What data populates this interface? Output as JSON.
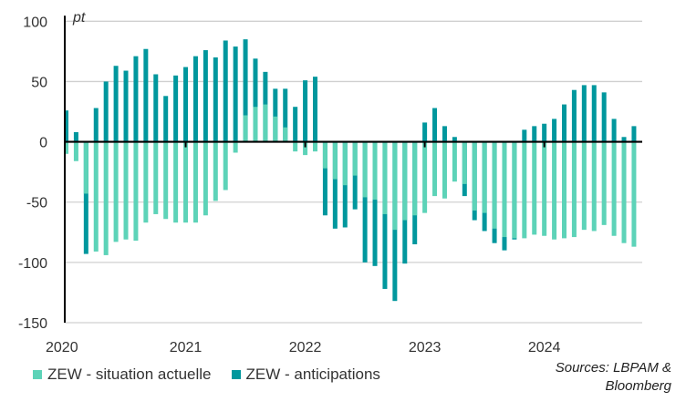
{
  "chart_data": {
    "type": "bar",
    "overlay": true,
    "unit_label": "pt",
    "ylim": [
      -150,
      100
    ],
    "yticks": [
      -150,
      -100,
      -50,
      0,
      50,
      100
    ],
    "grid": true,
    "legend_placement": "bottom-left",
    "x_start": "2020-01",
    "year_labels": [
      "2020",
      "2021",
      "2022",
      "2023",
      "2024"
    ],
    "series": [
      {
        "name": "ZEW - anticipations",
        "color": "#00979d",
        "values": [
          26,
          8,
          -93,
          28,
          50,
          63,
          59,
          71,
          77,
          56,
          38,
          55,
          62,
          71,
          76,
          70,
          84,
          79,
          85,
          69,
          58,
          44,
          44,
          29,
          51,
          54,
          -61,
          -72,
          -71,
          -56,
          -100,
          -103,
          -122,
          -132,
          -101,
          -85,
          16,
          28,
          13,
          4,
          -45,
          -65,
          -74,
          -84,
          -90,
          -81,
          10,
          13,
          15,
          19,
          31,
          43,
          47,
          47,
          41,
          19,
          4,
          13
        ]
      },
      {
        "name": "ZEW - situation actuelle",
        "color": "#5dd3b8",
        "values": [
          -10,
          -16,
          -43,
          -91,
          -94,
          -83,
          -81,
          -82,
          -67,
          -60,
          -64,
          -67,
          -67,
          -67,
          -61,
          -49,
          -40,
          -9,
          22,
          29,
          31,
          21,
          12,
          -8,
          -11,
          -8,
          -22,
          -31,
          -36,
          -28,
          -46,
          -48,
          -60,
          -73,
          -65,
          -61,
          -59,
          -45,
          -47,
          -33,
          -35,
          -57,
          -59,
          -72,
          -79,
          -80,
          -80,
          -77,
          -78,
          -81,
          -80,
          -79,
          -73,
          -74,
          -69,
          -78,
          -84,
          -87
        ]
      }
    ],
    "source": [
      "Sources: LBPAM &",
      "Bloomberg"
    ]
  }
}
